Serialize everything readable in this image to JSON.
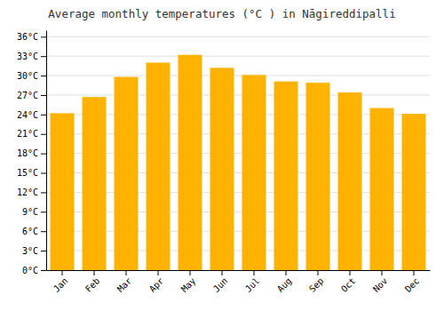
{
  "chart_data": {
    "type": "bar",
    "title": "Average monthly temperatures (°C ) in Nāgireddipalli",
    "categories": [
      "Jan",
      "Feb",
      "Mar",
      "Apr",
      "May",
      "Jun",
      "Jul",
      "Aug",
      "Sep",
      "Oct",
      "Nov",
      "Dec"
    ],
    "values": [
      24.2,
      26.7,
      29.8,
      32.0,
      33.2,
      31.2,
      30.1,
      29.1,
      28.9,
      27.4,
      25.0,
      24.1
    ],
    "color": "#FFB300",
    "ylim": [
      0,
      37
    ],
    "yticks": [
      {
        "value": 0,
        "label": "0°C"
      },
      {
        "value": 3,
        "label": "3°C"
      },
      {
        "value": 6,
        "label": "6°C"
      },
      {
        "value": 9,
        "label": "9°C"
      },
      {
        "value": 12,
        "label": "12°C"
      },
      {
        "value": 15,
        "label": "15°C"
      },
      {
        "value": 18,
        "label": "18°C"
      },
      {
        "value": 21,
        "label": "21°C"
      },
      {
        "value": 24,
        "label": "24°C"
      },
      {
        "value": 27,
        "label": "27°C"
      },
      {
        "value": 30,
        "label": "30°C"
      },
      {
        "value": 33,
        "label": "33°C"
      },
      {
        "value": 36,
        "label": "36°C"
      }
    ],
    "grid": true
  }
}
